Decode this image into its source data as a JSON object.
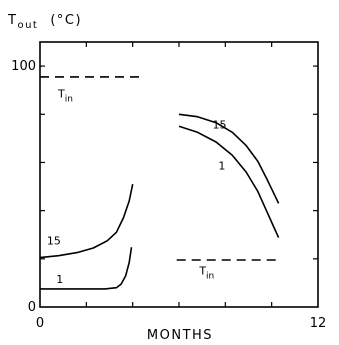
{
  "chart_data": {
    "type": "line",
    "ylabel_main": "T",
    "ylabel_sub": "out",
    "ylabel_unit": "(°C)",
    "xlabel": "MONTHS",
    "xlim": [
      0,
      12
    ],
    "ylim": [
      0,
      110
    ],
    "x_tick_labels": [
      {
        "value": 0,
        "label": "0"
      },
      {
        "value": 12,
        "label": "12"
      }
    ],
    "y_tick_labels": [
      {
        "value": 0,
        "label": "0"
      },
      {
        "value": 100,
        "label": "100"
      }
    ],
    "x_ticks": [
      0,
      2,
      4,
      6,
      8,
      10,
      12
    ],
    "y_ticks": [
      0,
      20,
      40,
      60,
      80,
      100
    ],
    "grid": false,
    "series": [
      {
        "name": "15",
        "style": "solid",
        "label_at": [
          0.6,
          26
        ],
        "points": [
          [
            0,
            20.5
          ],
          [
            0.8,
            21.3
          ],
          [
            1.6,
            22.6
          ],
          [
            2.3,
            24.5
          ],
          [
            2.9,
            27.5
          ],
          [
            3.3,
            31
          ],
          [
            3.6,
            37
          ],
          [
            3.85,
            44
          ],
          [
            4,
            51
          ]
        ]
      },
      {
        "name": "1",
        "style": "solid",
        "label_at": [
          0.85,
          10
        ],
        "points": [
          [
            0,
            7.5
          ],
          [
            1.5,
            7.5
          ],
          [
            2.8,
            7.5
          ],
          [
            3.3,
            8
          ],
          [
            3.5,
            9.5
          ],
          [
            3.7,
            13
          ],
          [
            3.85,
            18.5
          ],
          [
            3.95,
            24.8
          ]
        ]
      },
      {
        "name": "15",
        "style": "solid",
        "label_at": [
          7.75,
          74
        ],
        "points": [
          [
            6,
            80
          ],
          [
            6.8,
            79
          ],
          [
            7.6,
            76.5
          ],
          [
            8.3,
            72.5
          ],
          [
            8.9,
            67
          ],
          [
            9.4,
            60.5
          ],
          [
            9.8,
            53
          ],
          [
            10.1,
            47
          ],
          [
            10.3,
            43
          ]
        ]
      },
      {
        "name": "1",
        "style": "solid",
        "label_at": [
          7.85,
          57
        ],
        "points": [
          [
            6,
            75
          ],
          [
            6.8,
            72.5
          ],
          [
            7.6,
            68.5
          ],
          [
            8.3,
            63
          ],
          [
            8.9,
            56
          ],
          [
            9.4,
            48
          ],
          [
            9.8,
            39.5
          ],
          [
            10.1,
            33
          ],
          [
            10.3,
            28.8
          ]
        ]
      },
      {
        "name": "Tin",
        "style": "dashed",
        "label_main": "T",
        "label_sub": "in",
        "label_at": [
          1.1,
          87
        ],
        "points": [
          [
            0,
            95.5
          ],
          [
            4.3,
            95.5
          ]
        ]
      },
      {
        "name": "Tin",
        "style": "dashed",
        "label_main": "T",
        "label_sub": "in",
        "label_at": [
          7.2,
          13.5
        ],
        "points": [
          [
            5.9,
            19.5
          ],
          [
            10.3,
            19.5
          ]
        ]
      }
    ]
  }
}
